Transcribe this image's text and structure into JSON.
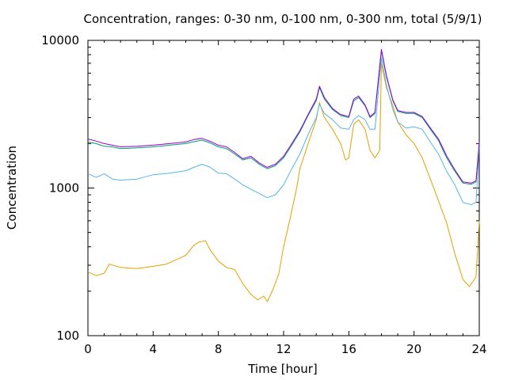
{
  "chart_data": {
    "type": "line",
    "title": "Concentration, ranges: 0-30 nm, 0-100 nm, 0-300 nm, total (5/9/1)",
    "xlabel": "Time [hour]",
    "ylabel": "Concentration",
    "xlim": [
      0,
      24
    ],
    "ylim": [
      100,
      10000
    ],
    "y_scale": "log",
    "grid": false,
    "legend": "none",
    "x_ticks": [
      0,
      4,
      8,
      12,
      16,
      20,
      24
    ],
    "x_tick_labels": [
      "0",
      "4",
      "8",
      "12",
      "16",
      "20",
      "24"
    ],
    "y_ticks": [
      100,
      1000,
      10000
    ],
    "y_tick_labels": [
      "100",
      "1000",
      "10000"
    ],
    "series": [
      {
        "color": "#e69f00",
        "points": [
          [
            0,
            270
          ],
          [
            0.5,
            255
          ],
          [
            1,
            265
          ],
          [
            1.3,
            305
          ],
          [
            2,
            290
          ],
          [
            3,
            285
          ],
          [
            4,
            295
          ],
          [
            4.8,
            305
          ],
          [
            5.5,
            330
          ],
          [
            6,
            350
          ],
          [
            6.5,
            410
          ],
          [
            6.8,
            430
          ],
          [
            7.2,
            440
          ],
          [
            7.5,
            380
          ],
          [
            8,
            320
          ],
          [
            8.5,
            290
          ],
          [
            9,
            280
          ],
          [
            9.5,
            225
          ],
          [
            10,
            190
          ],
          [
            10.4,
            175
          ],
          [
            10.8,
            185
          ],
          [
            11,
            170
          ],
          [
            11.3,
            200
          ],
          [
            11.7,
            260
          ],
          [
            12,
            400
          ],
          [
            12.4,
            620
          ],
          [
            12.8,
            1000
          ],
          [
            13,
            1350
          ],
          [
            13.5,
            2000
          ],
          [
            14,
            2900
          ],
          [
            14.2,
            3800
          ],
          [
            14.5,
            3000
          ],
          [
            15,
            2500
          ],
          [
            15.5,
            2000
          ],
          [
            15.8,
            1550
          ],
          [
            16,
            1600
          ],
          [
            16.3,
            2700
          ],
          [
            16.6,
            2900
          ],
          [
            17,
            2500
          ],
          [
            17.3,
            1800
          ],
          [
            17.6,
            1600
          ],
          [
            17.9,
            1800
          ],
          [
            18,
            7000
          ],
          [
            18.3,
            4800
          ],
          [
            18.7,
            3600
          ],
          [
            19,
            2800
          ],
          [
            19.5,
            2300
          ],
          [
            20,
            2000
          ],
          [
            20.5,
            1600
          ],
          [
            21,
            1150
          ],
          [
            21.5,
            820
          ],
          [
            22,
            580
          ],
          [
            22.5,
            360
          ],
          [
            23,
            240
          ],
          [
            23.4,
            215
          ],
          [
            23.8,
            250
          ],
          [
            24,
            600
          ]
        ]
      },
      {
        "color": "#56b4e9",
        "points": [
          [
            0,
            1250
          ],
          [
            0.5,
            1180
          ],
          [
            1,
            1250
          ],
          [
            1.5,
            1150
          ],
          [
            2,
            1130
          ],
          [
            3,
            1150
          ],
          [
            4,
            1230
          ],
          [
            5,
            1260
          ],
          [
            6,
            1310
          ],
          [
            6.5,
            1380
          ],
          [
            7,
            1450
          ],
          [
            7.5,
            1380
          ],
          [
            8,
            1260
          ],
          [
            8.5,
            1250
          ],
          [
            9,
            1150
          ],
          [
            9.5,
            1050
          ],
          [
            10,
            980
          ],
          [
            10.5,
            920
          ],
          [
            11,
            860
          ],
          [
            11.5,
            900
          ],
          [
            12,
            1050
          ],
          [
            12.5,
            1350
          ],
          [
            13,
            1700
          ],
          [
            13.5,
            2300
          ],
          [
            14,
            3000
          ],
          [
            14.2,
            3700
          ],
          [
            14.5,
            3200
          ],
          [
            15,
            2900
          ],
          [
            15.5,
            2550
          ],
          [
            16,
            2500
          ],
          [
            16.3,
            2900
          ],
          [
            16.6,
            3100
          ],
          [
            17,
            2900
          ],
          [
            17.3,
            2500
          ],
          [
            17.6,
            2500
          ],
          [
            18,
            7600
          ],
          [
            18.3,
            5000
          ],
          [
            18.7,
            3400
          ],
          [
            19,
            2800
          ],
          [
            19.5,
            2550
          ],
          [
            20,
            2600
          ],
          [
            20.5,
            2500
          ],
          [
            21,
            2050
          ],
          [
            21.5,
            1700
          ],
          [
            22,
            1300
          ],
          [
            22.5,
            1050
          ],
          [
            23,
            800
          ],
          [
            23.5,
            770
          ],
          [
            23.8,
            800
          ],
          [
            24,
            1900
          ]
        ]
      },
      {
        "color": "#009e73",
        "points": [
          [
            0,
            2050
          ],
          [
            0.5,
            2000
          ],
          [
            1,
            1920
          ],
          [
            1.5,
            1900
          ],
          [
            2,
            1850
          ],
          [
            3,
            1870
          ],
          [
            4,
            1900
          ],
          [
            5,
            1950
          ],
          [
            6,
            2000
          ],
          [
            6.5,
            2060
          ],
          [
            7,
            2110
          ],
          [
            7.5,
            2020
          ],
          [
            8,
            1900
          ],
          [
            8.5,
            1850
          ],
          [
            9,
            1700
          ],
          [
            9.5,
            1550
          ],
          [
            10,
            1600
          ],
          [
            10.5,
            1450
          ],
          [
            11,
            1350
          ],
          [
            11.5,
            1420
          ],
          [
            12,
            1600
          ],
          [
            12.5,
            1950
          ],
          [
            13,
            2400
          ],
          [
            13.5,
            3100
          ],
          [
            14,
            3900
          ],
          [
            14.2,
            4800
          ],
          [
            14.5,
            4000
          ],
          [
            15,
            3400
          ],
          [
            15.5,
            3100
          ],
          [
            16,
            3000
          ],
          [
            16.3,
            3900
          ],
          [
            16.6,
            4100
          ],
          [
            17,
            3600
          ],
          [
            17.3,
            3000
          ],
          [
            17.6,
            3200
          ],
          [
            18,
            8500
          ],
          [
            18.3,
            5700
          ],
          [
            18.7,
            3900
          ],
          [
            19,
            3300
          ],
          [
            19.5,
            3200
          ],
          [
            20,
            3200
          ],
          [
            20.5,
            3000
          ],
          [
            21,
            2500
          ],
          [
            21.5,
            2100
          ],
          [
            22,
            1600
          ],
          [
            22.5,
            1300
          ],
          [
            23,
            1080
          ],
          [
            23.5,
            1060
          ],
          [
            23.8,
            1100
          ],
          [
            24,
            2000
          ]
        ]
      },
      {
        "color": "#9400d3",
        "points": [
          [
            0,
            2150
          ],
          [
            0.5,
            2080
          ],
          [
            1,
            2000
          ],
          [
            1.5,
            1950
          ],
          [
            2,
            1900
          ],
          [
            3,
            1920
          ],
          [
            4,
            1950
          ],
          [
            5,
            2000
          ],
          [
            6,
            2050
          ],
          [
            6.5,
            2130
          ],
          [
            7,
            2170
          ],
          [
            7.5,
            2070
          ],
          [
            8,
            1950
          ],
          [
            8.5,
            1900
          ],
          [
            9,
            1740
          ],
          [
            9.5,
            1580
          ],
          [
            10,
            1640
          ],
          [
            10.5,
            1480
          ],
          [
            11,
            1380
          ],
          [
            11.5,
            1450
          ],
          [
            12,
            1640
          ],
          [
            12.5,
            2000
          ],
          [
            13,
            2450
          ],
          [
            13.5,
            3150
          ],
          [
            14,
            4000
          ],
          [
            14.2,
            4900
          ],
          [
            14.5,
            4100
          ],
          [
            15,
            3450
          ],
          [
            15.5,
            3150
          ],
          [
            16,
            3050
          ],
          [
            16.3,
            4000
          ],
          [
            16.6,
            4200
          ],
          [
            17,
            3650
          ],
          [
            17.3,
            3050
          ],
          [
            17.6,
            3250
          ],
          [
            18,
            8700
          ],
          [
            18.3,
            5800
          ],
          [
            18.7,
            3950
          ],
          [
            19,
            3350
          ],
          [
            19.5,
            3250
          ],
          [
            20,
            3250
          ],
          [
            20.5,
            3050
          ],
          [
            21,
            2550
          ],
          [
            21.5,
            2150
          ],
          [
            22,
            1650
          ],
          [
            22.5,
            1330
          ],
          [
            23,
            1100
          ],
          [
            23.5,
            1080
          ],
          [
            23.8,
            1120
          ],
          [
            24,
            2050
          ]
        ]
      }
    ]
  }
}
